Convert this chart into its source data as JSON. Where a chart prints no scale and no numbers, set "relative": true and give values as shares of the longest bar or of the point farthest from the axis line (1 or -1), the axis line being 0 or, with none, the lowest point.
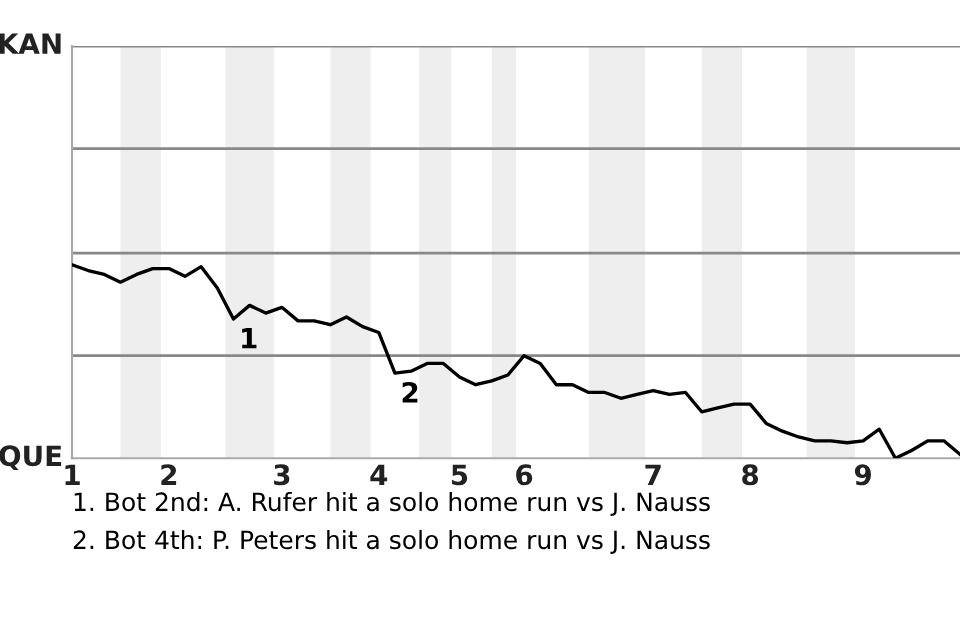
{
  "chart_data": {
    "type": "line",
    "color": "#000000",
    "relative": true,
    "categories": [
      "1",
      null,
      null,
      null,
      null,
      null,
      "2",
      null,
      null,
      null,
      null,
      null,
      null,
      "3",
      null,
      null,
      null,
      null,
      null,
      "4",
      null,
      null,
      null,
      null,
      "5",
      null,
      null,
      null,
      "6",
      null,
      null,
      null,
      null,
      null,
      null,
      null,
      "7",
      null,
      null,
      null,
      null,
      null,
      "8",
      null,
      null,
      null,
      null,
      null,
      null,
      "9",
      null,
      null,
      null,
      null,
      null,
      null
    ],
    "values": [
      1.0,
      0.97,
      0.95,
      0.91,
      0.95,
      0.98,
      0.98,
      0.94,
      0.99,
      0.88,
      0.72,
      0.79,
      0.75,
      0.78,
      0.71,
      0.71,
      0.69,
      0.73,
      0.68,
      0.65,
      0.44,
      0.45,
      0.49,
      0.49,
      0.42,
      0.38,
      0.4,
      0.43,
      0.53,
      0.49,
      0.38,
      0.38,
      0.34,
      0.34,
      0.31,
      0.33,
      0.35,
      0.33,
      0.34,
      0.24,
      0.26,
      0.28,
      0.28,
      0.18,
      0.14,
      0.11,
      0.09,
      0.09,
      0.08,
      0.09,
      0.15,
      0,
      0.04,
      0.09,
      0.09,
      0.02
    ],
    "marker": "none",
    "line_style": "solid",
    "ref_lines": [
      {
        "axis": "y",
        "value": 0.53,
        "color": "#888888"
      },
      {
        "axis": "y",
        "value": 1.06,
        "color": "#888888"
      },
      {
        "axis": "y",
        "value": 1.6,
        "color": "#888888"
      },
      {
        "axis": "y",
        "value": 2.13,
        "color": "#888888"
      }
    ],
    "annotations": [
      "KAN",
      "QUE",
      {
        "text": "1",
        "y": 0.72
      },
      {
        "text": "2",
        "y": 0.44
      },
      "1. Bot 2nd: A. Rufer hit a solo home run vs J. Nauss",
      "2. Bot 4th: P. Peters hit a solo home run vs J. Nauss"
    ]
  }
}
